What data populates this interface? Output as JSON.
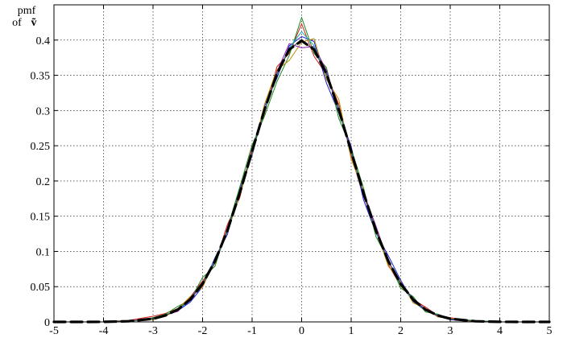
{
  "chart_data": {
    "type": "line",
    "title": "",
    "xlabel": "",
    "ylabel_line1": "pmf",
    "ylabel_line2": "of",
    "ylabel_symbol": "ṽ",
    "xlim": [
      -5,
      5
    ],
    "ylim": [
      0,
      0.45
    ],
    "xticks": [
      "-5",
      "-4",
      "-3",
      "-2",
      "-1",
      "0",
      "1",
      "2",
      "3",
      "4",
      "5"
    ],
    "yticks": [
      "0",
      "0.05",
      "0.1",
      "0.15",
      "0.2",
      "0.25",
      "0.3",
      "0.35",
      "0.4"
    ],
    "ytick_values": [
      0,
      0.05,
      0.1,
      0.15,
      0.2,
      0.25,
      0.3,
      0.35,
      0.4
    ],
    "xtick_values": [
      -5,
      -4,
      -3,
      -2,
      -1,
      0,
      1,
      2,
      3,
      4,
      5
    ],
    "grid": true,
    "reference_curve": {
      "style": "dashed-black-thick",
      "x": [
        -5,
        -4.5,
        -4,
        -3.5,
        -3,
        -2.75,
        -2.5,
        -2.25,
        -2,
        -1.75,
        -1.5,
        -1.25,
        -1,
        -0.75,
        -0.5,
        -0.25,
        0,
        0.25,
        0.5,
        0.75,
        1,
        1.25,
        1.5,
        1.75,
        2,
        2.25,
        2.5,
        2.75,
        3,
        3.5,
        4,
        4.5,
        5
      ],
      "y": [
        0.0,
        0.0,
        0.0001,
        0.0009,
        0.0044,
        0.0091,
        0.0175,
        0.0317,
        0.054,
        0.0863,
        0.1295,
        0.1826,
        0.242,
        0.3011,
        0.3521,
        0.3867,
        0.3989,
        0.3867,
        0.3521,
        0.3011,
        0.242,
        0.1826,
        0.1295,
        0.0863,
        0.054,
        0.0317,
        0.0175,
        0.0091,
        0.0044,
        0.0009,
        0.0001,
        0.0,
        0.0
      ]
    },
    "series": [
      {
        "color": "#d11a1a",
        "x": [
          -4,
          -3.5,
          -3,
          -2.75,
          -2.5,
          -2.25,
          -2,
          -1.75,
          -1.5,
          -1.25,
          -1,
          -0.75,
          -0.5,
          -0.25,
          0,
          0.25,
          0.5,
          0.75,
          1,
          1.25,
          1.5,
          1.75,
          2,
          2.25,
          2.5,
          2.75,
          3,
          3.5,
          4
        ],
        "y": [
          0.001,
          0.002,
          0.008,
          0.012,
          0.019,
          0.035,
          0.058,
          0.083,
          0.138,
          0.176,
          0.247,
          0.296,
          0.362,
          0.381,
          0.423,
          0.377,
          0.351,
          0.309,
          0.236,
          0.178,
          0.134,
          0.081,
          0.051,
          0.032,
          0.021,
          0.009,
          0.006,
          0.001,
          0.0
        ]
      },
      {
        "color": "#1a1ad1",
        "x": [
          -4,
          -3.5,
          -3,
          -2.75,
          -2.5,
          -2.25,
          -2,
          -1.75,
          -1.5,
          -1.25,
          -1,
          -0.75,
          -0.5,
          -0.25,
          0,
          0.25,
          0.5,
          0.75,
          1,
          1.25,
          1.5,
          1.75,
          2,
          2.25,
          2.5,
          2.75,
          3,
          3.5,
          4
        ],
        "y": [
          0.0,
          0.001,
          0.004,
          0.009,
          0.016,
          0.028,
          0.05,
          0.091,
          0.124,
          0.188,
          0.236,
          0.306,
          0.346,
          0.392,
          0.405,
          0.398,
          0.339,
          0.297,
          0.249,
          0.173,
          0.126,
          0.094,
          0.059,
          0.029,
          0.016,
          0.01,
          0.003,
          0.001,
          0.0
        ]
      },
      {
        "color": "#1a8a1a",
        "x": [
          -4,
          -3.5,
          -3,
          -2.75,
          -2.5,
          -2.25,
          -2,
          -1.75,
          -1.5,
          -1.25,
          -1,
          -0.75,
          -0.5,
          -0.25,
          0,
          0.25,
          0.5,
          0.75,
          1,
          1.25,
          1.5,
          1.75,
          2,
          2.25,
          2.5,
          2.75,
          3,
          3.5,
          4
        ],
        "y": [
          0.001,
          0.0,
          0.006,
          0.011,
          0.022,
          0.031,
          0.063,
          0.079,
          0.133,
          0.191,
          0.251,
          0.292,
          0.341,
          0.378,
          0.432,
          0.381,
          0.361,
          0.289,
          0.246,
          0.19,
          0.121,
          0.088,
          0.048,
          0.036,
          0.014,
          0.011,
          0.004,
          0.002,
          0.0
        ]
      },
      {
        "color": "#c08a00",
        "x": [
          -4,
          -3.5,
          -3,
          -2.75,
          -2.5,
          -2.25,
          -2,
          -1.75,
          -1.5,
          -1.25,
          -1,
          -0.75,
          -0.5,
          -0.25,
          0,
          0.25,
          0.5,
          0.75,
          1,
          1.25,
          1.5,
          1.75,
          2,
          2.25,
          2.5,
          2.75,
          3,
          3.5,
          4
        ],
        "y": [
          0.0,
          0.002,
          0.003,
          0.008,
          0.018,
          0.036,
          0.049,
          0.088,
          0.127,
          0.179,
          0.238,
          0.309,
          0.358,
          0.371,
          0.397,
          0.402,
          0.344,
          0.316,
          0.231,
          0.186,
          0.131,
          0.079,
          0.057,
          0.027,
          0.019,
          0.007,
          0.005,
          0.0,
          0.001
        ]
      },
      {
        "color": "#8a1ab0",
        "x": [
          -4,
          -3.5,
          -3,
          -2.75,
          -2.5,
          -2.25,
          -2,
          -1.75,
          -1.5,
          -1.25,
          -1,
          -0.75,
          -0.5,
          -0.25,
          0,
          0.25,
          0.5,
          0.75,
          1,
          1.25,
          1.5,
          1.75,
          2,
          2.25,
          2.5,
          2.75,
          3,
          3.5,
          4
        ],
        "y": [
          0.0,
          0.001,
          0.005,
          0.01,
          0.015,
          0.033,
          0.056,
          0.084,
          0.131,
          0.184,
          0.243,
          0.298,
          0.355,
          0.395,
          0.389,
          0.391,
          0.357,
          0.302,
          0.239,
          0.183,
          0.136,
          0.085,
          0.055,
          0.033,
          0.018,
          0.008,
          0.004,
          0.001,
          0.0
        ]
      },
      {
        "color": "#1ab0b0",
        "x": [
          -4,
          -3.5,
          -3,
          -2.75,
          -2.5,
          -2.25,
          -2,
          -1.75,
          -1.5,
          -1.25,
          -1,
          -0.75,
          -0.5,
          -0.25,
          0,
          0.25,
          0.5,
          0.75,
          1,
          1.25,
          1.5,
          1.75,
          2,
          2.25,
          2.5,
          2.75,
          3,
          3.5,
          4
        ],
        "y": [
          0.001,
          0.001,
          0.004,
          0.01,
          0.017,
          0.03,
          0.055,
          0.087,
          0.128,
          0.182,
          0.24,
          0.299,
          0.35,
          0.389,
          0.412,
          0.392,
          0.349,
          0.305,
          0.241,
          0.181,
          0.128,
          0.087,
          0.052,
          0.031,
          0.017,
          0.009,
          0.004,
          0.001,
          0.0
        ]
      },
      {
        "color": "#444444",
        "x": [
          -4,
          -3.5,
          -3,
          -2.75,
          -2.5,
          -2.25,
          -2,
          -1.75,
          -1.5,
          -1.25,
          -1,
          -0.75,
          -0.5,
          -0.25,
          0,
          0.25,
          0.5,
          0.75,
          1,
          1.25,
          1.5,
          1.75,
          2,
          2.25,
          2.5,
          2.75,
          3,
          3.5,
          4
        ],
        "y": [
          0.0,
          0.001,
          0.005,
          0.009,
          0.018,
          0.032,
          0.054,
          0.085,
          0.13,
          0.183,
          0.241,
          0.3,
          0.352,
          0.386,
          0.401,
          0.385,
          0.353,
          0.3,
          0.243,
          0.182,
          0.13,
          0.086,
          0.054,
          0.032,
          0.017,
          0.009,
          0.004,
          0.001,
          0.0
        ]
      }
    ]
  }
}
